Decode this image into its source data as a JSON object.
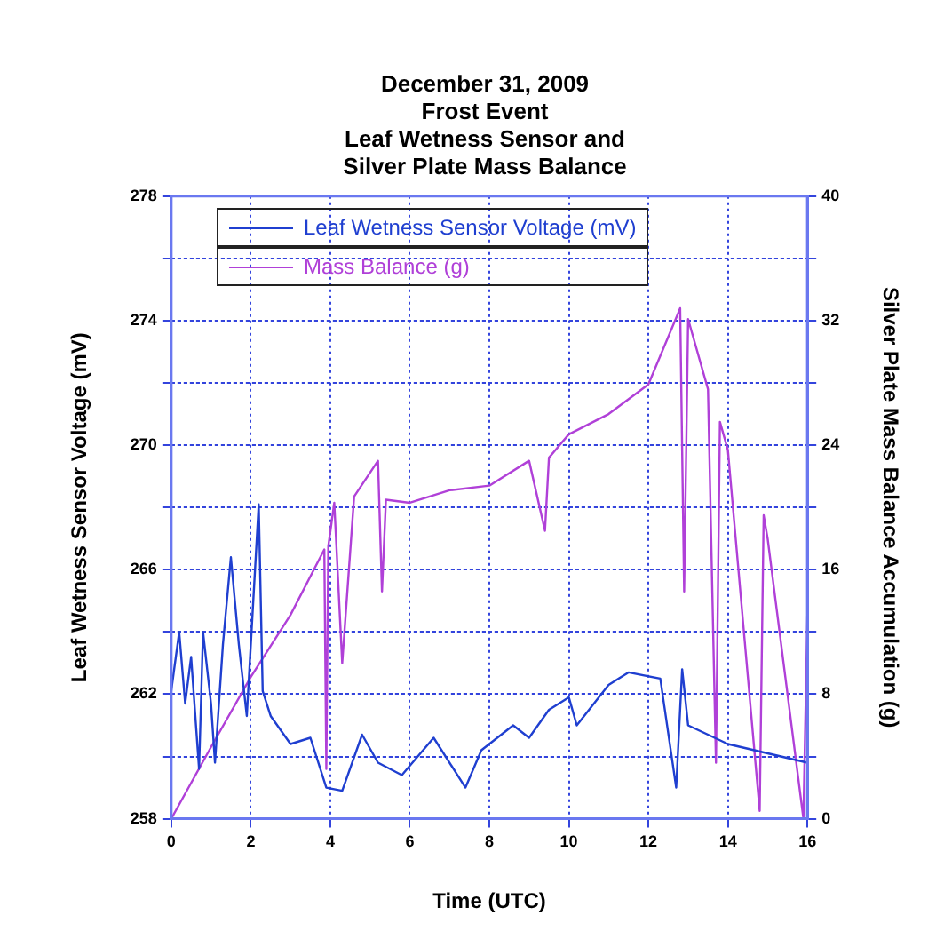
{
  "chart_data": {
    "type": "line",
    "title": [
      "December 31, 2009",
      "Frost Event",
      "Leaf Wetness Sensor and",
      "Silver Plate Mass Balance"
    ],
    "xlabel": "Time (UTC)",
    "ylabel": "Leaf Wetness Sensor Voltage (mV)",
    "y2label": "Silver Plate Mass Balance Accumulation (g)",
    "series": [
      {
        "name": "Leaf Wetness Sensor Voltage (mV)",
        "color": "#1f3fd0",
        "x": [
          0,
          0.2,
          0.35,
          0.5,
          0.7,
          0.8,
          1.0,
          1.1,
          1.3,
          1.5,
          1.7,
          1.9,
          2.2,
          2.3,
          2.5,
          3.0,
          3.5,
          3.9,
          4.3,
          4.8,
          5.2,
          5.8,
          6.6,
          7.4,
          7.8,
          8.6,
          9.0,
          9.5,
          10.0,
          10.2,
          11.0,
          11.5,
          12.3,
          12.7,
          12.85,
          13.0,
          14.0,
          15.0,
          16.0
        ],
        "values": [
          262.1,
          264.0,
          261.7,
          263.2,
          259.6,
          264.0,
          261.7,
          259.8,
          263.6,
          266.4,
          263.6,
          261.3,
          268.1,
          262.1,
          261.3,
          260.4,
          260.6,
          259.0,
          258.9,
          260.7,
          259.8,
          259.4,
          260.6,
          259.0,
          260.2,
          261.0,
          260.6,
          261.5,
          261.9,
          261.0,
          262.3,
          262.7,
          262.5,
          259.0,
          262.8,
          261.0,
          260.4,
          260.1,
          259.8
        ]
      },
      {
        "name": "Mass Balance (g)",
        "color": "#b040d8",
        "axis": "y2",
        "x": [
          0,
          1,
          2,
          3,
          3.85,
          3.9,
          3.95,
          4.1,
          4.3,
          4.6,
          5.2,
          5.3,
          5.4,
          6,
          7,
          8,
          9,
          9.4,
          9.5,
          10,
          11,
          12,
          12.8,
          12.9,
          13,
          13.5,
          13.7,
          13.8,
          14,
          14.8,
          14.9,
          15,
          15.9,
          16
        ],
        "values": [
          0,
          4.6,
          9.1,
          13.1,
          17.3,
          3.2,
          17.5,
          20.3,
          10.0,
          20.7,
          23.0,
          14.6,
          20.5,
          20.3,
          21.1,
          21.4,
          23.0,
          18.5,
          23.2,
          24.7,
          26.0,
          27.9,
          32.8,
          14.6,
          32.1,
          27.6,
          3.6,
          25.5,
          23.7,
          0.5,
          19.5,
          18.0,
          0,
          13.1
        ]
      }
    ],
    "xlim": [
      0,
      16
    ],
    "xticks": [
      0,
      2,
      4,
      6,
      8,
      10,
      12,
      14,
      16
    ],
    "ylim": [
      258,
      278
    ],
    "yticks": [
      258,
      {
        "value": 260,
        "label": null
      },
      262,
      {
        "value": 264,
        "label": null
      },
      266,
      {
        "value": 268,
        "label": null
      },
      270,
      {
        "value": 272,
        "label": null
      },
      274,
      {
        "value": 276,
        "label": null
      },
      278
    ],
    "y2lim": [
      0,
      40
    ],
    "y2ticks": [
      0,
      {
        "value": 4,
        "label": null
      },
      8,
      {
        "value": 12,
        "label": null
      },
      16,
      {
        "value": 20,
        "label": null
      },
      24,
      {
        "value": 28,
        "label": null
      },
      32,
      {
        "value": 36,
        "label": null
      },
      40
    ],
    "grid": true,
    "legend": "top left",
    "marker": "none",
    "line_style": "solid"
  }
}
